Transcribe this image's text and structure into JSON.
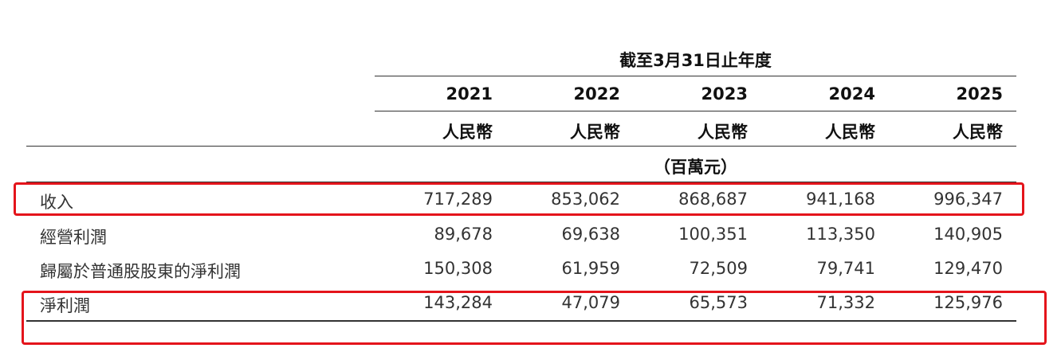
{
  "header": {
    "period_label": "截至3月31日止年度",
    "years": [
      "2021",
      "2022",
      "2023",
      "2024",
      "2025"
    ],
    "currency": [
      "人民幣",
      "人民幣",
      "人民幣",
      "人民幣",
      "人民幣"
    ],
    "unit_label": "（百萬元）"
  },
  "rows": [
    {
      "label": "收入",
      "values": [
        "717,289",
        "853,062",
        "868,687",
        "941,168",
        "996,347"
      ],
      "highlighted": true
    },
    {
      "label": "經營利潤",
      "values": [
        "89,678",
        "69,638",
        "100,351",
        "113,350",
        "140,905"
      ],
      "highlighted": false
    },
    {
      "label": "歸屬於普通股股東的淨利潤",
      "values": [
        "150,308",
        "61,959",
        "72,509",
        "79,741",
        "129,470"
      ],
      "highlighted": false
    },
    {
      "label": "淨利潤",
      "values": [
        "143,284",
        "47,079",
        "65,573",
        "71,332",
        "125,976"
      ],
      "highlighted": true
    }
  ],
  "colors": {
    "highlight_border": "#e4141b",
    "rule": "#333333"
  }
}
